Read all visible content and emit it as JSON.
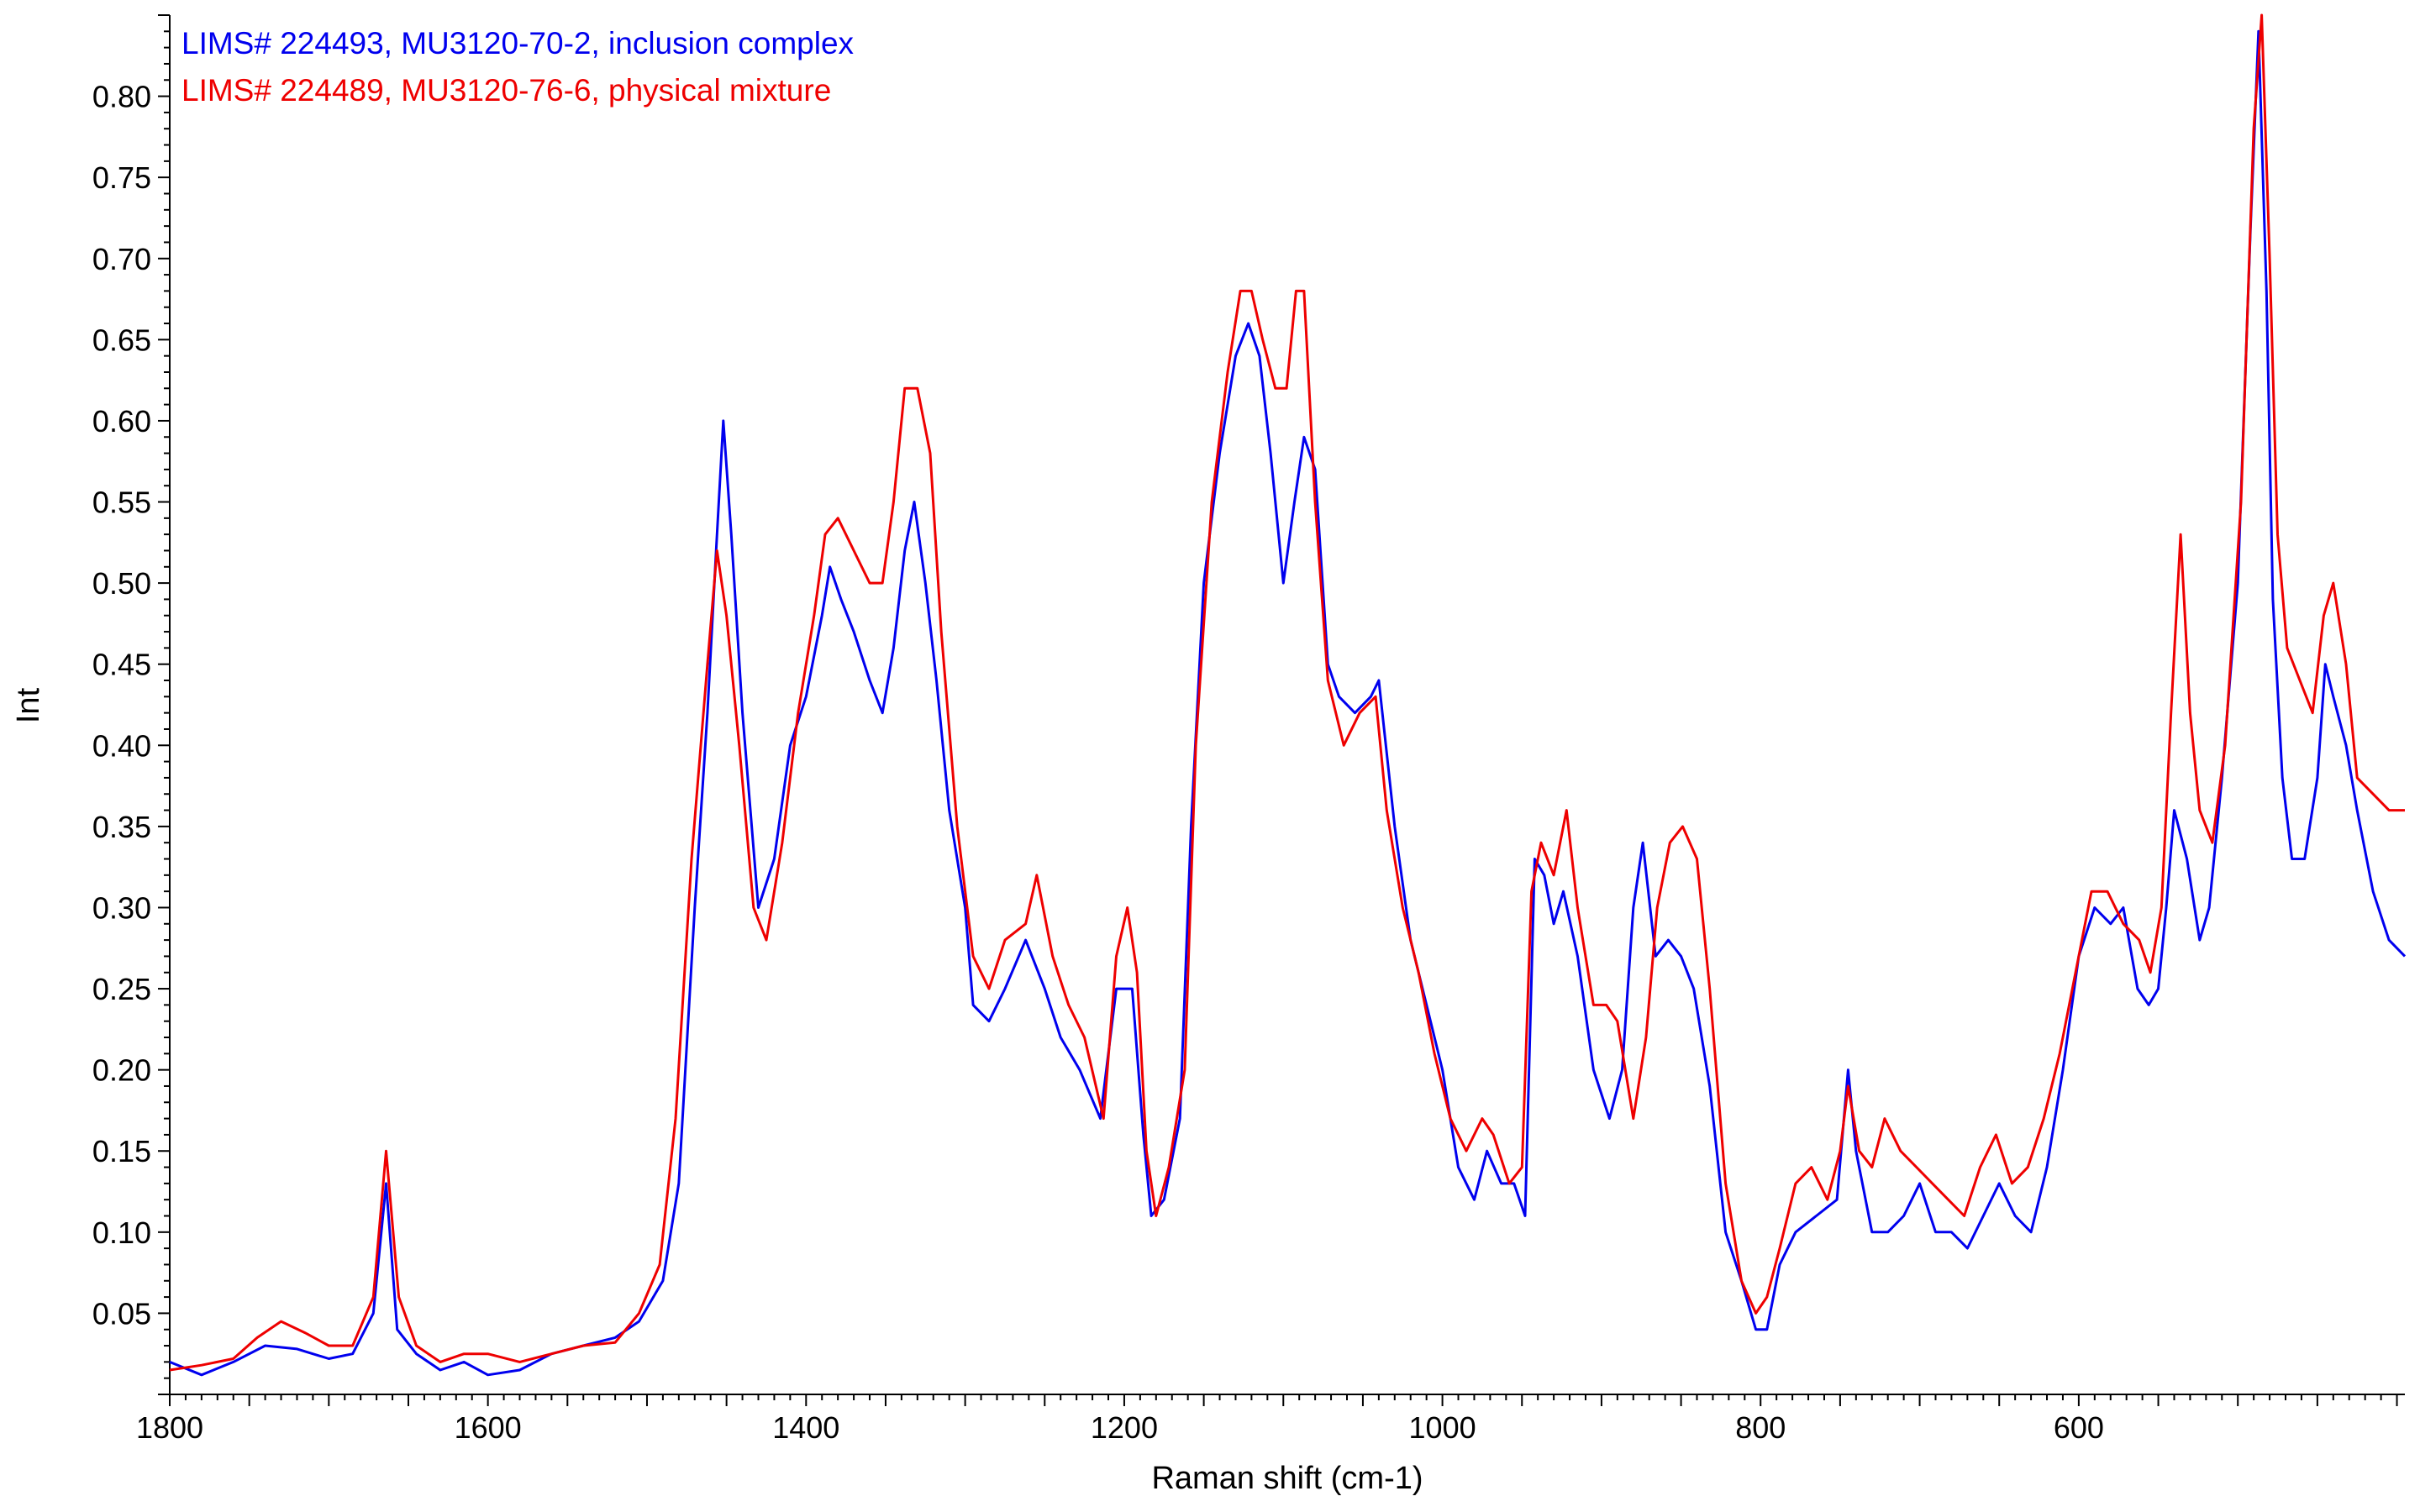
{
  "chart_data": {
    "type": "line",
    "title": "",
    "xlabel": "Raman shift (cm-1)",
    "ylabel": "Int",
    "xlim": [
      1800,
      395
    ],
    "ylim": [
      0.0,
      0.85
    ],
    "x_ticks": [
      "1800",
      "1600",
      "1400",
      "1200",
      "1000",
      "800",
      "600"
    ],
    "y_ticks": [
      "0.05",
      "0.10",
      "0.15",
      "0.20",
      "0.25",
      "0.30",
      "0.35",
      "0.40",
      "0.45",
      "0.50",
      "0.55",
      "0.60",
      "0.65",
      "0.70",
      "0.75",
      "0.80"
    ],
    "grid": false,
    "legend_position": "top-left",
    "series": [
      {
        "name": "LIMS# 224493, MU3120-70-2, inclusion complex",
        "color": "#0000ee",
        "points": [
          [
            1800,
            0.02
          ],
          [
            1780,
            0.012
          ],
          [
            1760,
            0.02
          ],
          [
            1740,
            0.03
          ],
          [
            1720,
            0.028
          ],
          [
            1700,
            0.022
          ],
          [
            1685,
            0.025
          ],
          [
            1672,
            0.05
          ],
          [
            1664,
            0.13
          ],
          [
            1657,
            0.04
          ],
          [
            1645,
            0.025
          ],
          [
            1630,
            0.015
          ],
          [
            1615,
            0.02
          ],
          [
            1600,
            0.012
          ],
          [
            1580,
            0.015
          ],
          [
            1560,
            0.025
          ],
          [
            1540,
            0.03
          ],
          [
            1520,
            0.035
          ],
          [
            1505,
            0.045
          ],
          [
            1490,
            0.07
          ],
          [
            1480,
            0.13
          ],
          [
            1470,
            0.3
          ],
          [
            1462,
            0.42
          ],
          [
            1456,
            0.53
          ],
          [
            1452,
            0.6
          ],
          [
            1447,
            0.53
          ],
          [
            1440,
            0.42
          ],
          [
            1430,
            0.3
          ],
          [
            1420,
            0.33
          ],
          [
            1410,
            0.4
          ],
          [
            1400,
            0.43
          ],
          [
            1390,
            0.48
          ],
          [
            1385,
            0.51
          ],
          [
            1378,
            0.49
          ],
          [
            1370,
            0.47
          ],
          [
            1360,
            0.44
          ],
          [
            1352,
            0.42
          ],
          [
            1345,
            0.46
          ],
          [
            1338,
            0.52
          ],
          [
            1332,
            0.55
          ],
          [
            1325,
            0.5
          ],
          [
            1318,
            0.44
          ],
          [
            1310,
            0.36
          ],
          [
            1300,
            0.3
          ],
          [
            1295,
            0.24
          ],
          [
            1285,
            0.23
          ],
          [
            1275,
            0.25
          ],
          [
            1262,
            0.28
          ],
          [
            1250,
            0.25
          ],
          [
            1240,
            0.22
          ],
          [
            1228,
            0.2
          ],
          [
            1215,
            0.17
          ],
          [
            1205,
            0.25
          ],
          [
            1195,
            0.25
          ],
          [
            1188,
            0.16
          ],
          [
            1183,
            0.11
          ],
          [
            1175,
            0.12
          ],
          [
            1165,
            0.17
          ],
          [
            1158,
            0.35
          ],
          [
            1150,
            0.5
          ],
          [
            1140,
            0.58
          ],
          [
            1130,
            0.64
          ],
          [
            1122,
            0.66
          ],
          [
            1115,
            0.64
          ],
          [
            1108,
            0.58
          ],
          [
            1100,
            0.5
          ],
          [
            1093,
            0.55
          ],
          [
            1087,
            0.59
          ],
          [
            1080,
            0.57
          ],
          [
            1072,
            0.45
          ],
          [
            1065,
            0.43
          ],
          [
            1055,
            0.42
          ],
          [
            1045,
            0.43
          ],
          [
            1040,
            0.44
          ],
          [
            1030,
            0.35
          ],
          [
            1020,
            0.28
          ],
          [
            1010,
            0.24
          ],
          [
            1000,
            0.2
          ],
          [
            990,
            0.14
          ],
          [
            980,
            0.12
          ],
          [
            972,
            0.15
          ],
          [
            963,
            0.13
          ],
          [
            955,
            0.13
          ],
          [
            948,
            0.11
          ],
          [
            942,
            0.33
          ],
          [
            936,
            0.32
          ],
          [
            930,
            0.29
          ],
          [
            924,
            0.31
          ],
          [
            915,
            0.27
          ],
          [
            905,
            0.2
          ],
          [
            895,
            0.17
          ],
          [
            887,
            0.2
          ],
          [
            880,
            0.3
          ],
          [
            874,
            0.34
          ],
          [
            866,
            0.27
          ],
          [
            858,
            0.28
          ],
          [
            850,
            0.27
          ],
          [
            842,
            0.25
          ],
          [
            832,
            0.19
          ],
          [
            822,
            0.1
          ],
          [
            812,
            0.07
          ],
          [
            803,
            0.04
          ],
          [
            796,
            0.04
          ],
          [
            788,
            0.08
          ],
          [
            778,
            0.1
          ],
          [
            765,
            0.11
          ],
          [
            752,
            0.12
          ],
          [
            745,
            0.2
          ],
          [
            740,
            0.15
          ],
          [
            730,
            0.1
          ],
          [
            720,
            0.1
          ],
          [
            710,
            0.11
          ],
          [
            700,
            0.13
          ],
          [
            690,
            0.1
          ],
          [
            680,
            0.1
          ],
          [
            670,
            0.09
          ],
          [
            660,
            0.11
          ],
          [
            650,
            0.13
          ],
          [
            640,
            0.11
          ],
          [
            630,
            0.1
          ],
          [
            620,
            0.14
          ],
          [
            610,
            0.2
          ],
          [
            600,
            0.27
          ],
          [
            590,
            0.3
          ],
          [
            580,
            0.29
          ],
          [
            572,
            0.3
          ],
          [
            563,
            0.25
          ],
          [
            556,
            0.24
          ],
          [
            550,
            0.25
          ],
          [
            545,
            0.3
          ],
          [
            540,
            0.36
          ],
          [
            532,
            0.33
          ],
          [
            524,
            0.28
          ],
          [
            518,
            0.3
          ],
          [
            510,
            0.38
          ],
          [
            500,
            0.5
          ],
          [
            492,
            0.72
          ],
          [
            487,
            0.84
          ],
          [
            482,
            0.68
          ],
          [
            478,
            0.49
          ],
          [
            472,
            0.38
          ],
          [
            466,
            0.33
          ],
          [
            458,
            0.33
          ],
          [
            450,
            0.38
          ],
          [
            445,
            0.45
          ],
          [
            440,
            0.43
          ],
          [
            432,
            0.4
          ],
          [
            425,
            0.36
          ],
          [
            415,
            0.31
          ],
          [
            405,
            0.28
          ],
          [
            395,
            0.27
          ]
        ]
      },
      {
        "name": "LIMS# 224489, MU3120-76-6, physical mixture",
        "color": "#ee0000",
        "points": [
          [
            1800,
            0.015
          ],
          [
            1780,
            0.018
          ],
          [
            1760,
            0.022
          ],
          [
            1745,
            0.035
          ],
          [
            1730,
            0.045
          ],
          [
            1715,
            0.038
          ],
          [
            1700,
            0.03
          ],
          [
            1685,
            0.03
          ],
          [
            1672,
            0.06
          ],
          [
            1664,
            0.15
          ],
          [
            1656,
            0.06
          ],
          [
            1645,
            0.03
          ],
          [
            1630,
            0.02
          ],
          [
            1615,
            0.025
          ],
          [
            1600,
            0.025
          ],
          [
            1580,
            0.02
          ],
          [
            1560,
            0.025
          ],
          [
            1540,
            0.03
          ],
          [
            1520,
            0.032
          ],
          [
            1505,
            0.05
          ],
          [
            1492,
            0.08
          ],
          [
            1482,
            0.17
          ],
          [
            1472,
            0.33
          ],
          [
            1462,
            0.45
          ],
          [
            1456,
            0.52
          ],
          [
            1450,
            0.48
          ],
          [
            1442,
            0.4
          ],
          [
            1433,
            0.3
          ],
          [
            1425,
            0.28
          ],
          [
            1415,
            0.34
          ],
          [
            1405,
            0.42
          ],
          [
            1395,
            0.48
          ],
          [
            1388,
            0.53
          ],
          [
            1380,
            0.54
          ],
          [
            1370,
            0.52
          ],
          [
            1360,
            0.5
          ],
          [
            1352,
            0.5
          ],
          [
            1345,
            0.55
          ],
          [
            1338,
            0.62
          ],
          [
            1330,
            0.62
          ],
          [
            1322,
            0.58
          ],
          [
            1315,
            0.47
          ],
          [
            1305,
            0.35
          ],
          [
            1295,
            0.27
          ],
          [
            1285,
            0.25
          ],
          [
            1275,
            0.28
          ],
          [
            1262,
            0.29
          ],
          [
            1255,
            0.32
          ],
          [
            1245,
            0.27
          ],
          [
            1235,
            0.24
          ],
          [
            1225,
            0.22
          ],
          [
            1213,
            0.17
          ],
          [
            1205,
            0.27
          ],
          [
            1198,
            0.3
          ],
          [
            1192,
            0.26
          ],
          [
            1186,
            0.15
          ],
          [
            1180,
            0.11
          ],
          [
            1172,
            0.14
          ],
          [
            1162,
            0.2
          ],
          [
            1155,
            0.4
          ],
          [
            1145,
            0.55
          ],
          [
            1135,
            0.63
          ],
          [
            1127,
            0.68
          ],
          [
            1120,
            0.68
          ],
          [
            1113,
            0.65
          ],
          [
            1105,
            0.62
          ],
          [
            1098,
            0.62
          ],
          [
            1092,
            0.68
          ],
          [
            1087,
            0.68
          ],
          [
            1080,
            0.55
          ],
          [
            1072,
            0.44
          ],
          [
            1062,
            0.4
          ],
          [
            1052,
            0.42
          ],
          [
            1042,
            0.43
          ],
          [
            1035,
            0.36
          ],
          [
            1025,
            0.3
          ],
          [
            1015,
            0.26
          ],
          [
            1005,
            0.21
          ],
          [
            995,
            0.17
          ],
          [
            985,
            0.15
          ],
          [
            975,
            0.17
          ],
          [
            968,
            0.16
          ],
          [
            958,
            0.13
          ],
          [
            950,
            0.14
          ],
          [
            944,
            0.31
          ],
          [
            938,
            0.34
          ],
          [
            930,
            0.32
          ],
          [
            922,
            0.36
          ],
          [
            915,
            0.3
          ],
          [
            905,
            0.24
          ],
          [
            897,
            0.24
          ],
          [
            890,
            0.23
          ],
          [
            880,
            0.17
          ],
          [
            872,
            0.22
          ],
          [
            865,
            0.3
          ],
          [
            857,
            0.34
          ],
          [
            849,
            0.35
          ],
          [
            840,
            0.33
          ],
          [
            832,
            0.25
          ],
          [
            822,
            0.13
          ],
          [
            812,
            0.07
          ],
          [
            803,
            0.05
          ],
          [
            796,
            0.06
          ],
          [
            788,
            0.09
          ],
          [
            778,
            0.13
          ],
          [
            768,
            0.14
          ],
          [
            758,
            0.12
          ],
          [
            750,
            0.15
          ],
          [
            745,
            0.19
          ],
          [
            738,
            0.15
          ],
          [
            730,
            0.14
          ],
          [
            722,
            0.17
          ],
          [
            712,
            0.15
          ],
          [
            702,
            0.14
          ],
          [
            692,
            0.13
          ],
          [
            682,
            0.12
          ],
          [
            672,
            0.11
          ],
          [
            662,
            0.14
          ],
          [
            652,
            0.16
          ],
          [
            642,
            0.13
          ],
          [
            632,
            0.14
          ],
          [
            622,
            0.17
          ],
          [
            612,
            0.21
          ],
          [
            602,
            0.26
          ],
          [
            592,
            0.31
          ],
          [
            582,
            0.31
          ],
          [
            572,
            0.29
          ],
          [
            562,
            0.28
          ],
          [
            555,
            0.26
          ],
          [
            548,
            0.3
          ],
          [
            542,
            0.42
          ],
          [
            536,
            0.53
          ],
          [
            530,
            0.42
          ],
          [
            524,
            0.36
          ],
          [
            516,
            0.34
          ],
          [
            508,
            0.4
          ],
          [
            498,
            0.55
          ],
          [
            490,
            0.78
          ],
          [
            485,
            0.85
          ],
          [
            480,
            0.7
          ],
          [
            475,
            0.53
          ],
          [
            469,
            0.46
          ],
          [
            461,
            0.44
          ],
          [
            453,
            0.42
          ],
          [
            446,
            0.48
          ],
          [
            440,
            0.5
          ],
          [
            432,
            0.45
          ],
          [
            425,
            0.38
          ],
          [
            415,
            0.37
          ],
          [
            405,
            0.36
          ],
          [
            395,
            0.36
          ]
        ]
      }
    ]
  }
}
